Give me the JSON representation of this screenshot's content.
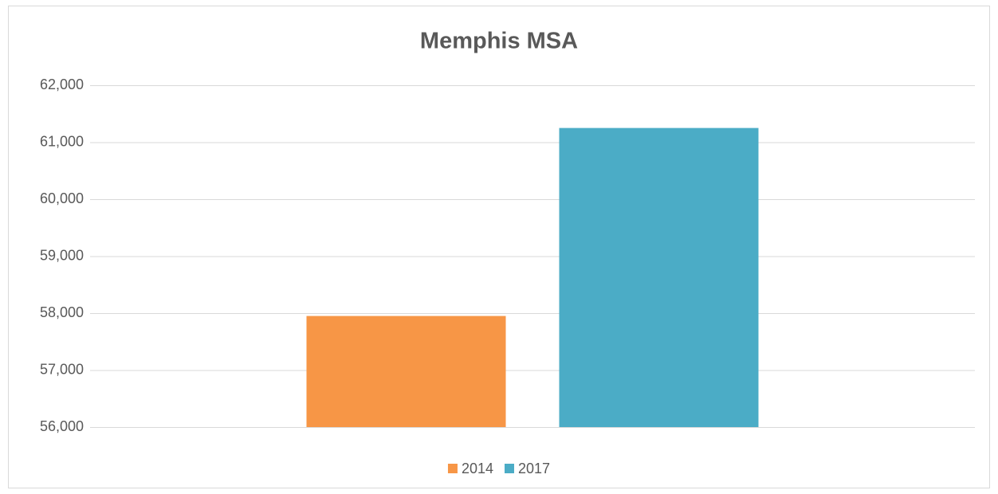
{
  "chart_data": {
    "type": "bar",
    "title": "Memphis MSA",
    "categories": [
      null
    ],
    "series": [
      {
        "name": "2014",
        "color": "#f79646",
        "values": [
          57950
        ]
      },
      {
        "name": "2017",
        "color": "#4bacc6",
        "values": [
          61250
        ]
      }
    ],
    "ylim": [
      56000,
      62000
    ],
    "yticks": [
      {
        "value": 56000,
        "label": "56,000"
      },
      {
        "value": 57000,
        "label": "57,000"
      },
      {
        "value": 58000,
        "label": "58,000"
      },
      {
        "value": 59000,
        "label": "59,000"
      },
      {
        "value": 60000,
        "label": "60,000"
      },
      {
        "value": 61000,
        "label": "61,000"
      },
      {
        "value": 62000,
        "label": "62,000"
      }
    ],
    "grid": true,
    "legend": "bottom"
  }
}
